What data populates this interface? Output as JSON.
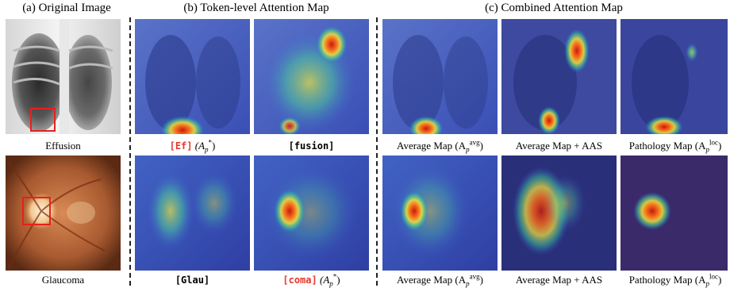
{
  "headers": {
    "original": "(a) Original Image",
    "token": "(b) Token-level Attention Map",
    "combined": "(c) Combined Attention Map"
  },
  "row1": {
    "original_caption": "Effusion",
    "token1_token": "[Ef]",
    "token1_sym": "(A",
    "token2_token": "[fusion]",
    "avg_caption": "Average Map (A",
    "aas_caption": "Average Map + AAS",
    "path_caption": "Pathology Map (A"
  },
  "row2": {
    "original_caption": "Glaucoma",
    "token1_token": "[Glau]",
    "token2_token": "[coma]",
    "token2_sym": "(A",
    "avg_caption": "Average Map (A",
    "aas_caption": "Average Map + AAS",
    "path_caption": "Pathology Map (A"
  },
  "math": {
    "sub_p": "p",
    "sup_star": "*",
    "sup_avg": "avg",
    "sup_loc": "loc",
    "close": ")"
  },
  "colors": {
    "highlight_box": "#e8201c",
    "token_red": "#e8352c"
  }
}
